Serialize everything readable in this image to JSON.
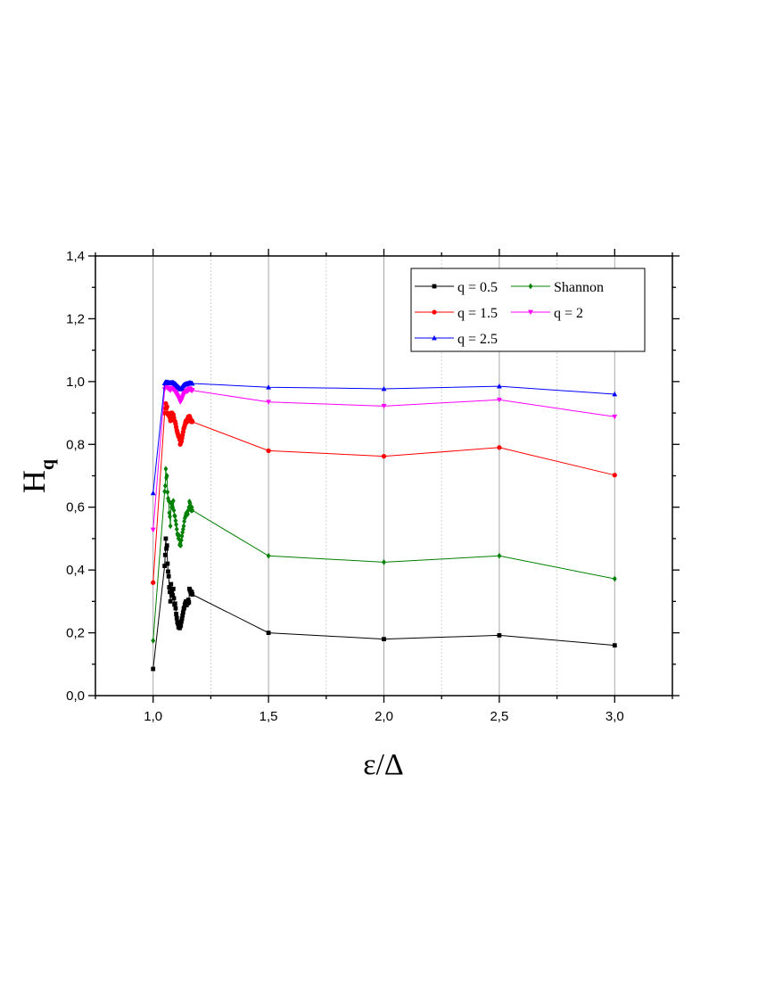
{
  "chart_data": {
    "type": "line",
    "title": "",
    "xlabel": "ε/Δ",
    "ylabel": "H",
    "ylabel_subscript": "q",
    "xlim": [
      0.75,
      3.25
    ],
    "ylim": [
      0.0,
      1.4
    ],
    "x_ticks": [
      1.0,
      1.5,
      2.0,
      2.5,
      3.0
    ],
    "x_tick_labels": [
      "1,0",
      "1,5",
      "2,0",
      "2,5",
      "3,0"
    ],
    "y_ticks": [
      0.0,
      0.2,
      0.4,
      0.6,
      0.8,
      1.0,
      1.2,
      1.4
    ],
    "y_tick_labels": [
      "0,0",
      "0,2",
      "0,4",
      "0,6",
      "0,8",
      "1,0",
      "1,2",
      "1,4"
    ],
    "grid": "vertical",
    "legend_position": "top-right",
    "x": [
      1.0,
      1.05,
      1.0525,
      1.055,
      1.0575,
      1.06,
      1.0625,
      1.065,
      1.0675,
      1.07,
      1.0725,
      1.075,
      1.0775,
      1.08,
      1.0825,
      1.085,
      1.0875,
      1.09,
      1.0925,
      1.095,
      1.0975,
      1.1,
      1.1025,
      1.105,
      1.1075,
      1.11,
      1.1125,
      1.115,
      1.1175,
      1.12,
      1.1225,
      1.125,
      1.1275,
      1.13,
      1.1325,
      1.135,
      1.1375,
      1.14,
      1.1425,
      1.145,
      1.1475,
      1.15,
      1.1525,
      1.155,
      1.1575,
      1.16,
      1.1625,
      1.165,
      1.1675,
      1.17,
      1.5,
      2.0,
      2.5,
      3.0
    ],
    "series": [
      {
        "name": "q = 0.5",
        "color": "#000000",
        "marker": "square",
        "values": [
          0.085,
          0.413,
          0.448,
          0.5,
          0.468,
          0.478,
          0.42,
          0.395,
          0.38,
          0.345,
          0.33,
          0.3,
          0.355,
          0.32,
          0.338,
          0.32,
          0.34,
          0.31,
          0.29,
          0.293,
          0.278,
          0.26,
          0.247,
          0.234,
          0.23,
          0.218,
          0.226,
          0.215,
          0.221,
          0.224,
          0.236,
          0.245,
          0.255,
          0.265,
          0.276,
          0.28,
          0.29,
          0.295,
          0.3,
          0.288,
          0.3,
          0.294,
          0.305,
          0.297,
          0.34,
          0.335,
          0.33,
          0.325,
          0.33,
          0.322,
          0.2,
          0.18,
          0.192,
          0.16
        ]
      },
      {
        "name": "Shannon",
        "color": "#008000",
        "marker": "diamond",
        "values": [
          0.175,
          0.65,
          0.668,
          0.722,
          0.694,
          0.7,
          0.648,
          0.628,
          0.62,
          0.582,
          0.57,
          0.54,
          0.612,
          0.6,
          0.614,
          0.6,
          0.62,
          0.59,
          0.573,
          0.572,
          0.557,
          0.545,
          0.53,
          0.515,
          0.51,
          0.5,
          0.51,
          0.48,
          0.485,
          0.478,
          0.495,
          0.508,
          0.52,
          0.53,
          0.54,
          0.555,
          0.565,
          0.572,
          0.58,
          0.575,
          0.585,
          0.578,
          0.59,
          0.6,
          0.618,
          0.612,
          0.6,
          0.59,
          0.6,
          0.59,
          0.445,
          0.425,
          0.445,
          0.372
        ]
      },
      {
        "name": "q = 1.5",
        "color": "#ff0000",
        "marker": "circle",
        "values": [
          0.36,
          0.9,
          0.915,
          0.93,
          0.915,
          0.92,
          0.9,
          0.895,
          0.893,
          0.89,
          0.885,
          0.875,
          0.9,
          0.895,
          0.9,
          0.89,
          0.895,
          0.885,
          0.875,
          0.873,
          0.865,
          0.855,
          0.845,
          0.838,
          0.832,
          0.825,
          0.826,
          0.815,
          0.8,
          0.805,
          0.81,
          0.82,
          0.83,
          0.84,
          0.85,
          0.855,
          0.862,
          0.87,
          0.875,
          0.87,
          0.88,
          0.875,
          0.888,
          0.882,
          0.89,
          0.885,
          0.878,
          0.872,
          0.876,
          0.872,
          0.78,
          0.762,
          0.79,
          0.702
        ]
      },
      {
        "name": "q = 2",
        "color": "#ff00ff",
        "marker": "triangle-down",
        "values": [
          0.528,
          0.975,
          0.985,
          0.99,
          0.985,
          0.986,
          0.98,
          0.978,
          0.977,
          0.976,
          0.975,
          0.972,
          0.98,
          0.978,
          0.98,
          0.976,
          0.978,
          0.974,
          0.97,
          0.969,
          0.965,
          0.962,
          0.958,
          0.955,
          0.952,
          0.948,
          0.946,
          0.942,
          0.935,
          0.938,
          0.94,
          0.945,
          0.95,
          0.955,
          0.96,
          0.962,
          0.965,
          0.968,
          0.97,
          0.968,
          0.972,
          0.97,
          0.975,
          0.973,
          0.978,
          0.976,
          0.974,
          0.972,
          0.973,
          0.972,
          0.935,
          0.922,
          0.942,
          0.888
        ]
      },
      {
        "name": "q = 2.5",
        "color": "#0000ff",
        "marker": "triangle-up",
        "values": [
          0.645,
          0.995,
          0.997,
          0.999,
          0.998,
          0.998,
          0.997,
          0.997,
          0.997,
          0.996,
          0.996,
          0.995,
          0.997,
          0.996,
          0.997,
          0.996,
          0.997,
          0.995,
          0.994,
          0.993,
          0.992,
          0.99,
          0.988,
          0.986,
          0.984,
          0.982,
          0.981,
          0.979,
          0.976,
          0.978,
          0.979,
          0.982,
          0.985,
          0.987,
          0.989,
          0.99,
          0.991,
          0.992,
          0.993,
          0.992,
          0.994,
          0.993,
          0.995,
          0.994,
          0.996,
          0.996,
          0.995,
          0.994,
          0.995,
          0.994,
          0.982,
          0.977,
          0.985,
          0.96
        ]
      }
    ],
    "legend_layout": [
      [
        "q = 0.5",
        "Shannon"
      ],
      [
        "q = 1.5",
        "q = 2"
      ],
      [
        "q = 2.5"
      ]
    ]
  }
}
